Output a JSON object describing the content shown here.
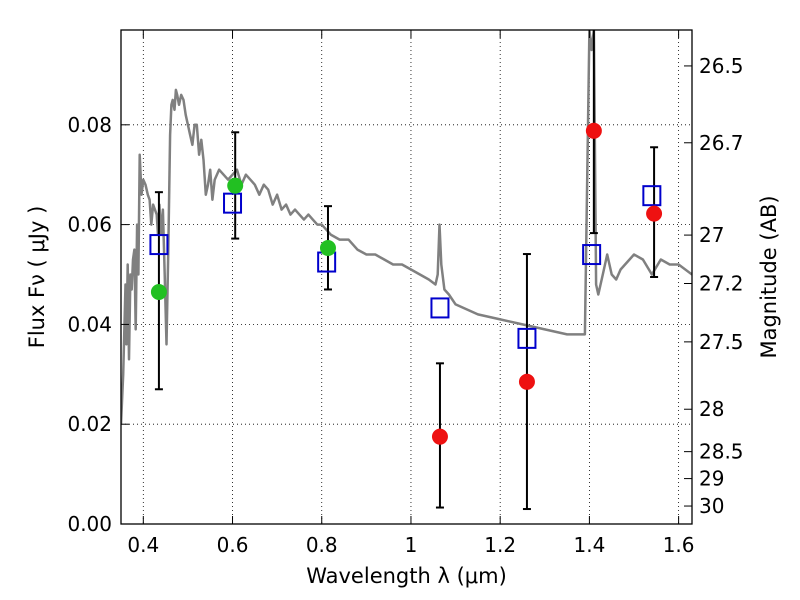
{
  "chart_data": {
    "type": "scatter",
    "title": "",
    "xlabel": "Wavelength  λ (μm)",
    "ylabel": "Flux  Fν  ( μJy )",
    "ylabel_right": "Magnitude (AB)",
    "xlim": [
      0.35,
      1.63
    ],
    "ylim": [
      0.0,
      0.099
    ],
    "grid": true,
    "grid_style": "dotted",
    "x_ticks": [
      0.4,
      0.6,
      0.8,
      1.0,
      1.2,
      1.4,
      1.6
    ],
    "x_tick_labels": [
      "0.4",
      "0.6",
      "0.8",
      "1",
      "1.2",
      "1.4",
      "1.6"
    ],
    "y_ticks": [
      0.0,
      0.02,
      0.04,
      0.06,
      0.08
    ],
    "y_tick_labels": [
      "0.00",
      "0.02",
      "0.04",
      "0.06",
      "0.08"
    ],
    "right_ticks": [
      {
        "label": "26.5",
        "flux": 0.0918
      },
      {
        "label": "26.7",
        "flux": 0.0764
      },
      {
        "label": "27",
        "flux": 0.0579
      },
      {
        "label": "27.2",
        "flux": 0.0482
      },
      {
        "label": "27.5",
        "flux": 0.0365
      },
      {
        "label": "28",
        "flux": 0.023
      },
      {
        "label": "28.5",
        "flux": 0.0145
      },
      {
        "label": "29",
        "flux": 0.0091
      },
      {
        "label": "30",
        "flux": 0.0036
      }
    ],
    "colors": {
      "model": "#808080",
      "optical": "#22c022",
      "nir": "#ee1111",
      "model_flux": "#0000cc",
      "errorbar": "#000000"
    },
    "series": [
      {
        "marker": "line",
        "color": "#808080",
        "x": [
          0.35,
          0.355,
          0.36,
          0.362,
          0.365,
          0.368,
          0.371,
          0.374,
          0.377,
          0.38,
          0.383,
          0.386,
          0.389,
          0.392,
          0.396,
          0.4,
          0.405,
          0.41,
          0.414,
          0.418,
          0.422,
          0.426,
          0.43,
          0.433,
          0.436,
          0.44,
          0.444,
          0.448,
          0.452,
          0.456,
          0.46,
          0.463,
          0.466,
          0.468,
          0.47,
          0.473,
          0.476,
          0.48,
          0.485,
          0.49,
          0.495,
          0.5,
          0.505,
          0.51,
          0.515,
          0.52,
          0.525,
          0.53,
          0.535,
          0.54,
          0.545,
          0.55,
          0.555,
          0.56,
          0.565,
          0.57,
          0.58,
          0.59,
          0.6,
          0.61,
          0.62,
          0.63,
          0.64,
          0.65,
          0.66,
          0.67,
          0.68,
          0.69,
          0.7,
          0.71,
          0.72,
          0.73,
          0.74,
          0.75,
          0.76,
          0.77,
          0.78,
          0.79,
          0.8,
          0.82,
          0.84,
          0.86,
          0.88,
          0.9,
          0.92,
          0.94,
          0.96,
          0.98,
          1.0,
          1.02,
          1.04,
          1.055,
          1.06,
          1.064,
          1.068,
          1.075,
          1.085,
          1.1,
          1.15,
          1.2,
          1.25,
          1.3,
          1.35,
          1.39,
          1.4,
          1.405,
          1.41,
          1.415,
          1.42,
          1.43,
          1.44,
          1.45,
          1.46,
          1.47,
          1.5,
          1.52,
          1.54,
          1.56,
          1.58,
          1.6,
          1.63
        ],
        "y": [
          0.02,
          0.03,
          0.048,
          0.036,
          0.052,
          0.033,
          0.05,
          0.047,
          0.053,
          0.055,
          0.039,
          0.06,
          0.05,
          0.074,
          0.066,
          0.069,
          0.068,
          0.066,
          0.065,
          0.06,
          0.064,
          0.063,
          0.062,
          0.058,
          0.064,
          0.058,
          0.063,
          0.05,
          0.036,
          0.055,
          0.078,
          0.084,
          0.085,
          0.084,
          0.083,
          0.087,
          0.086,
          0.084,
          0.086,
          0.085,
          0.082,
          0.08,
          0.078,
          0.076,
          0.08,
          0.08,
          0.074,
          0.077,
          0.073,
          0.066,
          0.068,
          0.071,
          0.065,
          0.069,
          0.07,
          0.071,
          0.07,
          0.069,
          0.07,
          0.071,
          0.068,
          0.07,
          0.069,
          0.068,
          0.066,
          0.068,
          0.067,
          0.064,
          0.066,
          0.063,
          0.064,
          0.062,
          0.063,
          0.062,
          0.061,
          0.062,
          0.061,
          0.06,
          0.06,
          0.058,
          0.057,
          0.057,
          0.055,
          0.054,
          0.054,
          0.053,
          0.052,
          0.052,
          0.051,
          0.05,
          0.049,
          0.048,
          0.05,
          0.06,
          0.052,
          0.047,
          0.046,
          0.044,
          0.042,
          0.041,
          0.04,
          0.039,
          0.038,
          0.038,
          0.099,
          0.095,
          0.099,
          0.048,
          0.046,
          0.05,
          0.054,
          0.05,
          0.049,
          0.051,
          0.054,
          0.053,
          0.05,
          0.053,
          0.052,
          0.052,
          0.05
        ]
      },
      {
        "marker": "circle",
        "color": "#22c022",
        "points": [
          {
            "x": 0.435,
            "y": 0.0465
          },
          {
            "x": 0.606,
            "y": 0.0678
          },
          {
            "x": 0.814,
            "y": 0.0553
          }
        ]
      },
      {
        "marker": "circle",
        "color": "#ee1111",
        "points": [
          {
            "x": 1.065,
            "y": 0.0175
          },
          {
            "x": 1.26,
            "y": 0.0285
          },
          {
            "x": 1.41,
            "y": 0.0788
          },
          {
            "x": 1.545,
            "y": 0.0622
          }
        ]
      },
      {
        "marker": "square",
        "color": "#0000cc",
        "points": [
          {
            "x": 0.435,
            "y": 0.056
          },
          {
            "x": 0.6,
            "y": 0.0643
          },
          {
            "x": 0.811,
            "y": 0.0525
          },
          {
            "x": 1.065,
            "y": 0.0433
          },
          {
            "x": 1.26,
            "y": 0.0372
          },
          {
            "x": 1.405,
            "y": 0.054
          },
          {
            "x": 1.54,
            "y": 0.0658
          }
        ]
      },
      {
        "marker": "errorbar",
        "color": "#000000",
        "bars": [
          {
            "x": 0.435,
            "low": 0.027,
            "high": 0.0665
          },
          {
            "x": 0.606,
            "low": 0.0572,
            "high": 0.0785
          },
          {
            "x": 0.814,
            "low": 0.047,
            "high": 0.0637
          },
          {
            "x": 1.065,
            "low": 0.0033,
            "high": 0.0322
          },
          {
            "x": 1.26,
            "low": 0.003,
            "high": 0.0541
          },
          {
            "x": 1.41,
            "low": 0.0583,
            "high": 0.099
          },
          {
            "x": 1.545,
            "low": 0.0495,
            "high": 0.0755
          }
        ]
      }
    ]
  }
}
